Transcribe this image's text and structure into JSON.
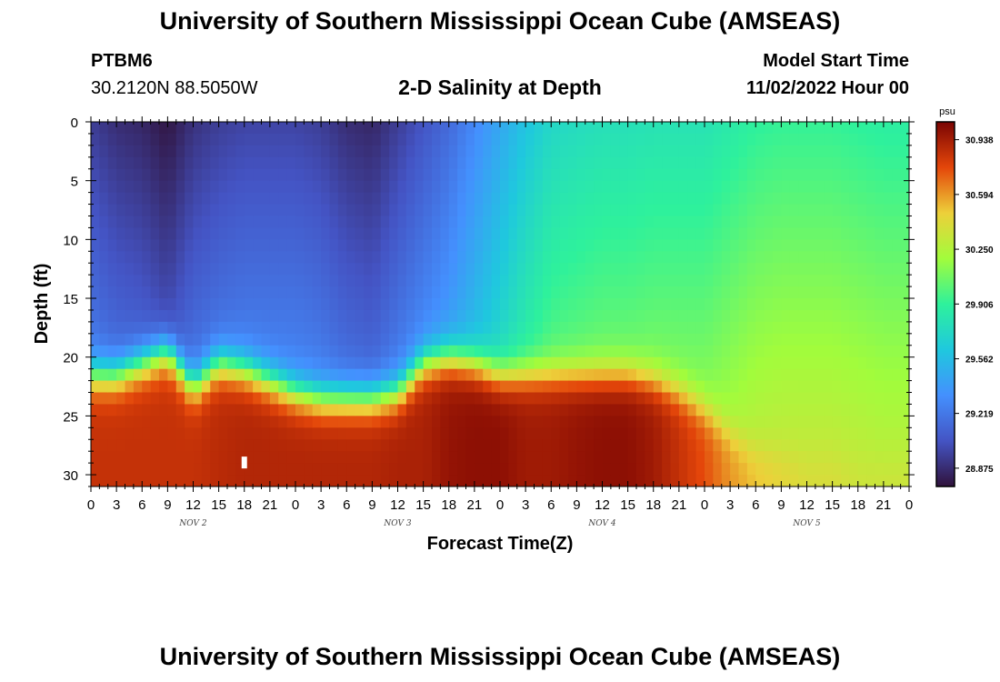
{
  "page": {
    "title": "University of Southern Mississippi Ocean Cube (AMSEAS)",
    "title_bottom": "University of Southern Mississippi Ocean Cube (AMSEAS)",
    "station_id": "PTBM6",
    "station_location": "30.2120N  88.5050W",
    "subtitle": "2-D Salinity at Depth",
    "model_start_label": "Model Start Time",
    "model_start_time": "11/02/2022 Hour 00"
  },
  "chart_data": {
    "type": "heatmap",
    "title": "2-D Salinity at Depth",
    "xlabel": "Forecast Time(Z)",
    "ylabel": "Depth (ft)",
    "x_unit": "hours since 11/02/2022 00Z",
    "xlim": [
      0,
      96
    ],
    "ylim": [
      0,
      31
    ],
    "y_inverted": true,
    "x_tick_labels": [
      "0",
      "3",
      "6",
      "9",
      "12",
      "15",
      "18",
      "21",
      "0",
      "3",
      "6",
      "9",
      "12",
      "15",
      "18",
      "21",
      "0",
      "3",
      "6",
      "9",
      "12",
      "15",
      "18",
      "21",
      "0",
      "3",
      "6",
      "9",
      "12",
      "15",
      "18",
      "21",
      "0"
    ],
    "y_ticks": [
      0,
      5,
      10,
      15,
      20,
      25,
      30
    ],
    "y_tick_labels": [
      "0",
      "5",
      "10",
      "15",
      "20",
      "25",
      "30"
    ],
    "day_labels": [
      {
        "text": "NOV 2",
        "hour": 12
      },
      {
        "text": "NOV 3",
        "hour": 36
      },
      {
        "text": "NOV 4",
        "hour": 60
      },
      {
        "text": "NOV 5",
        "hour": 84
      }
    ],
    "colorbar": {
      "unit": "psu",
      "min": 28.76,
      "max": 31.05,
      "labels": [
        "30.938",
        "30.594",
        "30.250",
        "29.906",
        "29.562",
        "29.219",
        "28.875"
      ]
    },
    "profile_columns": [
      {
        "hour": 0,
        "top": 28.95,
        "deep": 30.85,
        "thermocline_depth": 21.5
      },
      {
        "hour": 3,
        "top": 28.88,
        "deep": 30.85,
        "thermocline_depth": 21.5
      },
      {
        "hour": 6,
        "top": 28.85,
        "deep": 30.85,
        "thermocline_depth": 20.5
      },
      {
        "hour": 9,
        "top": 28.78,
        "deep": 30.85,
        "thermocline_depth": 19.5
      },
      {
        "hour": 12,
        "top": 28.9,
        "deep": 30.85,
        "thermocline_depth": 22.5
      },
      {
        "hour": 15,
        "top": 28.95,
        "deep": 30.88,
        "thermocline_depth": 20.5
      },
      {
        "hour": 18,
        "top": 28.98,
        "deep": 30.9,
        "thermocline_depth": 21.0
      },
      {
        "hour": 21,
        "top": 28.98,
        "deep": 30.9,
        "thermocline_depth": 22.0
      },
      {
        "hour": 24,
        "top": 28.98,
        "deep": 30.9,
        "thermocline_depth": 23.0
      },
      {
        "hour": 27,
        "top": 28.95,
        "deep": 30.9,
        "thermocline_depth": 23.5
      },
      {
        "hour": 30,
        "top": 28.88,
        "deep": 30.9,
        "thermocline_depth": 23.5
      },
      {
        "hour": 33,
        "top": 28.85,
        "deep": 30.9,
        "thermocline_depth": 23.5
      },
      {
        "hour": 36,
        "top": 28.95,
        "deep": 30.92,
        "thermocline_depth": 23.0
      },
      {
        "hour": 39,
        "top": 29.05,
        "deep": 30.92,
        "thermocline_depth": 20.5
      },
      {
        "hour": 42,
        "top": 29.15,
        "deep": 30.98,
        "thermocline_depth": 20.0
      },
      {
        "hour": 45,
        "top": 29.3,
        "deep": 31.0,
        "thermocline_depth": 20.5
      },
      {
        "hour": 48,
        "top": 29.45,
        "deep": 31.0,
        "thermocline_depth": 21.5
      },
      {
        "hour": 51,
        "top": 29.6,
        "deep": 30.95,
        "thermocline_depth": 21.5
      },
      {
        "hour": 54,
        "top": 29.72,
        "deep": 30.95,
        "thermocline_depth": 21.5
      },
      {
        "hour": 57,
        "top": 29.75,
        "deep": 30.98,
        "thermocline_depth": 21.5
      },
      {
        "hour": 60,
        "top": 29.78,
        "deep": 31.0,
        "thermocline_depth": 21.5
      },
      {
        "hour": 63,
        "top": 29.78,
        "deep": 31.0,
        "thermocline_depth": 21.5
      },
      {
        "hour": 66,
        "top": 29.8,
        "deep": 30.95,
        "thermocline_depth": 22.0
      },
      {
        "hour": 69,
        "top": 29.8,
        "deep": 30.85,
        "thermocline_depth": 23.0
      },
      {
        "hour": 72,
        "top": 29.8,
        "deep": 30.75,
        "thermocline_depth": 24.5
      },
      {
        "hour": 75,
        "top": 29.85,
        "deep": 30.6,
        "thermocline_depth": 26.5
      },
      {
        "hour": 78,
        "top": 29.9,
        "deep": 30.5,
        "thermocline_depth": 28.0
      },
      {
        "hour": 81,
        "top": 29.92,
        "deep": 30.45,
        "thermocline_depth": 28.5
      },
      {
        "hour": 84,
        "top": 29.92,
        "deep": 30.4,
        "thermocline_depth": 29.0
      },
      {
        "hour": 87,
        "top": 29.92,
        "deep": 30.4,
        "thermocline_depth": 29.0
      },
      {
        "hour": 90,
        "top": 29.9,
        "deep": 30.35,
        "thermocline_depth": 29.5
      },
      {
        "hour": 93,
        "top": 29.88,
        "deep": 30.35,
        "thermocline_depth": 29.5
      },
      {
        "hour": 96,
        "top": 29.88,
        "deep": 30.35,
        "thermocline_depth": 29.5
      }
    ],
    "marker": {
      "hour": 18,
      "depth": 29.0
    }
  }
}
